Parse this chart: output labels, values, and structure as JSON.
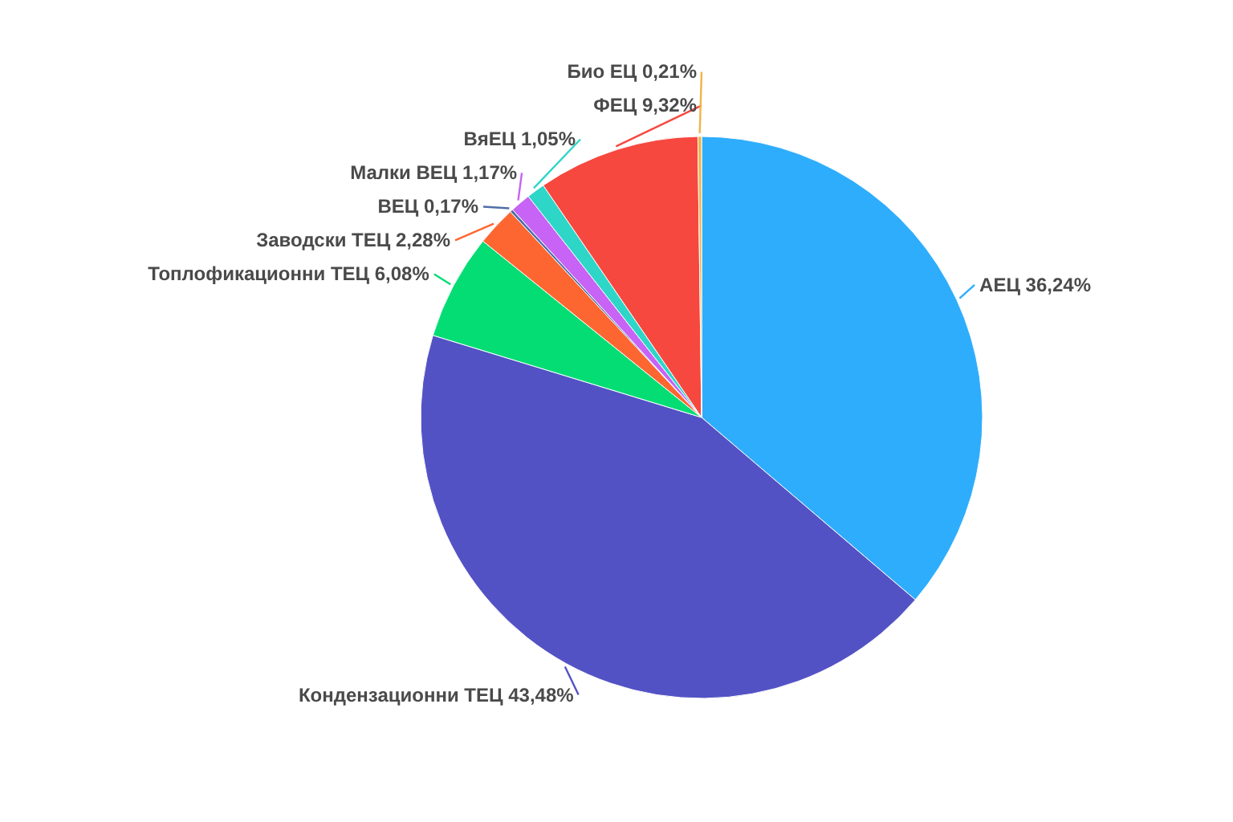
{
  "chart_data": {
    "type": "pie",
    "categories": [
      "АЕЦ",
      "Кондензационни ТЕЦ",
      "Топлофикационни ТЕЦ",
      "Заводски ТЕЦ",
      "ВЕЦ",
      "Малки ВЕЦ",
      "ВяЕЦ",
      "ФЕЦ",
      "Био ЕЦ"
    ],
    "values": [
      36.24,
      43.48,
      6.08,
      2.28,
      0.17,
      1.17,
      1.05,
      9.32,
      0.21
    ],
    "colors": [
      "#2eadfc",
      "#5352c5",
      "#04dd74",
      "#fe6631",
      "#4f6fa8",
      "#c763f5",
      "#2ed6c8",
      "#f6483f",
      "#f0b449"
    ],
    "value_labels": [
      "36,24%",
      "43,48%",
      "6,08%",
      "2,28%",
      "0,17%",
      "1,17%",
      "1,05%",
      "9,32%",
      "0,21%"
    ]
  }
}
